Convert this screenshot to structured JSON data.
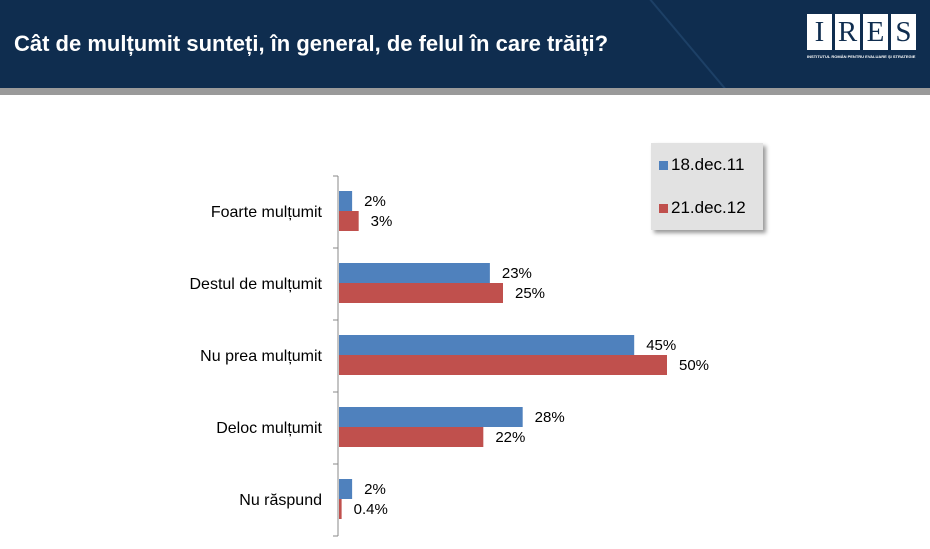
{
  "header": {
    "title": "Cât de mulțumit sunteți, în general, de felul în care trăiți?",
    "logo": {
      "letters": [
        "I",
        "R",
        "E",
        "S"
      ],
      "subtitle": "INSTITUTUL ROMÂN PENTRU EVALUARE ȘI STRATEGIE"
    }
  },
  "chart_data": {
    "type": "bar",
    "orientation": "horizontal",
    "categories": [
      "Foarte mulțumit",
      "Destul de mulțumit",
      "Nu prea mulțumit",
      "Deloc mulțumit",
      "Nu răspund"
    ],
    "series": [
      {
        "name": "18.dec.11",
        "color": "#4f81bd",
        "values": [
          2,
          23,
          45,
          28,
          2
        ],
        "labels": [
          "2%",
          "23%",
          "45%",
          "28%",
          "2%"
        ]
      },
      {
        "name": "21.dec.12",
        "color": "#c0504d",
        "values": [
          3,
          25,
          50,
          22,
          0.4
        ],
        "labels": [
          "3%",
          "25%",
          "50%",
          "22%",
          "0.4%"
        ]
      }
    ],
    "xlim": [
      0,
      50
    ],
    "legend": "top-right",
    "grid": false
  }
}
